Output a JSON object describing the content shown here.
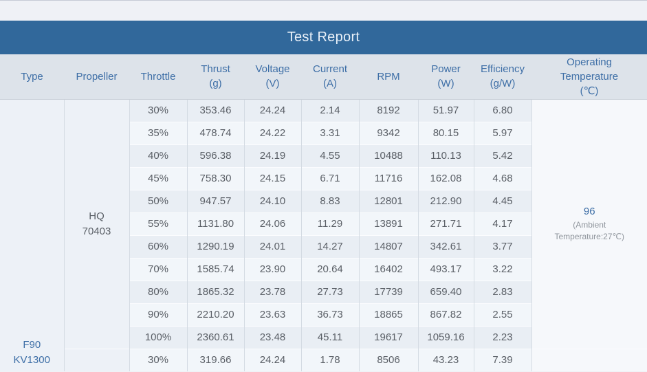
{
  "report": {
    "title": "Test Report",
    "columns": [
      {
        "id": "type",
        "lines": [
          "Type"
        ]
      },
      {
        "id": "prop",
        "lines": [
          "Propeller"
        ]
      },
      {
        "id": "throttle",
        "lines": [
          "Throttle"
        ]
      },
      {
        "id": "thrust",
        "lines": [
          "Thrust",
          "(g)"
        ]
      },
      {
        "id": "voltage",
        "lines": [
          "Voltage",
          "(V)"
        ]
      },
      {
        "id": "current",
        "lines": [
          "Current",
          "(A)"
        ]
      },
      {
        "id": "rpm",
        "lines": [
          "RPM"
        ]
      },
      {
        "id": "power",
        "lines": [
          "Power",
          "(W)"
        ]
      },
      {
        "id": "eff",
        "lines": [
          "Efficiency",
          "(g/W)"
        ]
      },
      {
        "id": "temp",
        "lines": [
          "Operating",
          "Temperature",
          "(℃)"
        ]
      }
    ],
    "type_lines": [
      "F90",
      "KV1300"
    ],
    "propeller_lines": [
      "HQ",
      "70403"
    ],
    "propeller_rowspan": 11,
    "operating_temperature": {
      "value": "96",
      "note_lines": [
        "(Ambient",
        "Temperature:27℃)"
      ]
    },
    "rows": [
      {
        "throttle": "30%",
        "thrust": "353.46",
        "voltage": "24.24",
        "current": "2.14",
        "rpm": "8192",
        "power": "51.97",
        "eff": "6.80"
      },
      {
        "throttle": "35%",
        "thrust": "478.74",
        "voltage": "24.22",
        "current": "3.31",
        "rpm": "9342",
        "power": "80.15",
        "eff": "5.97"
      },
      {
        "throttle": "40%",
        "thrust": "596.38",
        "voltage": "24.19",
        "current": "4.55",
        "rpm": "10488",
        "power": "110.13",
        "eff": "5.42"
      },
      {
        "throttle": "45%",
        "thrust": "758.30",
        "voltage": "24.15",
        "current": "6.71",
        "rpm": "11716",
        "power": "162.08",
        "eff": "4.68"
      },
      {
        "throttle": "50%",
        "thrust": "947.57",
        "voltage": "24.10",
        "current": "8.83",
        "rpm": "12801",
        "power": "212.90",
        "eff": "4.45"
      },
      {
        "throttle": "55%",
        "thrust": "1131.80",
        "voltage": "24.06",
        "current": "11.29",
        "rpm": "13891",
        "power": "271.71",
        "eff": "4.17"
      },
      {
        "throttle": "60%",
        "thrust": "1290.19",
        "voltage": "24.01",
        "current": "14.27",
        "rpm": "14807",
        "power": "342.61",
        "eff": "3.77"
      },
      {
        "throttle": "70%",
        "thrust": "1585.74",
        "voltage": "23.90",
        "current": "20.64",
        "rpm": "16402",
        "power": "493.17",
        "eff": "3.22"
      },
      {
        "throttle": "80%",
        "thrust": "1865.32",
        "voltage": "23.78",
        "current": "27.73",
        "rpm": "17739",
        "power": "659.40",
        "eff": "2.83"
      },
      {
        "throttle": "90%",
        "thrust": "2210.20",
        "voltage": "23.63",
        "current": "36.73",
        "rpm": "18865",
        "power": "867.82",
        "eff": "2.55"
      },
      {
        "throttle": "100%",
        "thrust": "2360.61",
        "voltage": "23.48",
        "current": "45.11",
        "rpm": "19617",
        "power": "1059.16",
        "eff": "2.23"
      },
      {
        "throttle": "30%",
        "thrust": "319.66",
        "voltage": "24.24",
        "current": "1.78",
        "rpm": "8506",
        "power": "43.23",
        "eff": "7.39"
      }
    ],
    "colors": {
      "title_bar_bg": "#31689b",
      "title_text": "#eaf1f9",
      "header_bg": "#dde3ea",
      "accent_text": "#3d6ea6",
      "value_text": "#5a5f66",
      "stripe_dark": "#e9eef4",
      "stripe_light": "#f2f6fa"
    }
  }
}
